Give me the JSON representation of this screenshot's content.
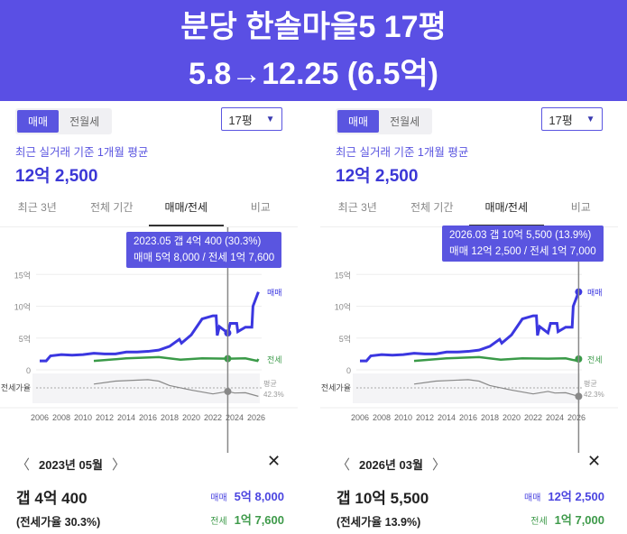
{
  "banner": {
    "line1": "분당 한솔마을5 17평",
    "line2": "5.8→12.25 (6.5억)"
  },
  "panels": [
    {
      "seg": [
        "매매",
        "전월세"
      ],
      "size": "17평",
      "subtitle": "최근 실거래 기준 1개월 평균",
      "price": "12억 2,500",
      "tabs": [
        "최근 3년",
        "전체 기간",
        "매매/전세",
        "비교"
      ],
      "tooltip": {
        "line1": "2023.05  갭 4억 400 (30.3%)",
        "line2": "매매 5억 8,000 / 전세 1억 7,600"
      },
      "cursor_year": 2023.37,
      "footer": {
        "month": "2023년 05월",
        "gap": "갭 4억 400",
        "ratio": "(전세가율 30.3%)",
        "sale_label": "매매",
        "sale": "5억 8,000",
        "jeonse_label": "전세",
        "jeonse": "1억 7,600"
      }
    },
    {
      "seg": [
        "매매",
        "전월세"
      ],
      "size": "17평",
      "subtitle": "최근 실거래 기준 1개월 평균",
      "price": "12억 2,500",
      "tabs": [
        "최근 3년",
        "전체 기간",
        "매매/전세",
        "비교"
      ],
      "tooltip": {
        "line1": "2026.03  갭 10억 5,500 (13.9%)",
        "line2": "매매 12억 2,500 / 전세 1억 7,000"
      },
      "cursor_year": 2026.2,
      "footer": {
        "month": "2026년 03월",
        "gap": "갭 10억 5,500",
        "ratio": "(전세가율 13.9%)",
        "sale_label": "매매",
        "sale": "12억 2,500",
        "jeonse_label": "전세",
        "jeonse": "1억 7,000"
      }
    }
  ],
  "chart_data": {
    "type": "line",
    "ylabel": "억",
    "yticks": [
      "0",
      "5억",
      "10억",
      "15억"
    ],
    "ylim": [
      0,
      15
    ],
    "xticks": [
      "2006",
      "2008",
      "2010",
      "2012",
      "2014",
      "2016",
      "2018",
      "2020",
      "2022",
      "2024",
      "2026"
    ],
    "ratio_label": "전세가율",
    "avg_label": "평균",
    "avg_value": "42.3%",
    "series": [
      {
        "name": "매매",
        "color": "#3b37e0",
        "points": [
          [
            2006,
            1.4
          ],
          [
            2006.6,
            1.4
          ],
          [
            2007,
            2.2
          ],
          [
            2008,
            2.4
          ],
          [
            2009,
            2.3
          ],
          [
            2010,
            2.4
          ],
          [
            2011,
            2.6
          ],
          [
            2012,
            2.5
          ],
          [
            2013,
            2.5
          ],
          [
            2014,
            2.8
          ],
          [
            2015,
            2.8
          ],
          [
            2016,
            2.9
          ],
          [
            2017,
            3.1
          ],
          [
            2018,
            3.7
          ],
          [
            2018.9,
            4.8
          ],
          [
            2019.1,
            4.2
          ],
          [
            2020,
            5.5
          ],
          [
            2021,
            8.0
          ],
          [
            2022,
            8.5
          ],
          [
            2022.3,
            8.5
          ],
          [
            2022.4,
            5.4
          ],
          [
            2022.6,
            6.8
          ],
          [
            2023.37,
            5.8
          ],
          [
            2023.6,
            7.3
          ],
          [
            2024.2,
            7.3
          ],
          [
            2024.3,
            6.0
          ],
          [
            2025,
            6.7
          ],
          [
            2025.6,
            6.7
          ],
          [
            2025.7,
            10
          ],
          [
            2026.2,
            12.25
          ]
        ]
      },
      {
        "name": "전세",
        "color": "#3a9a48",
        "points": [
          [
            2011,
            1.4
          ],
          [
            2014,
            1.8
          ],
          [
            2017,
            2.0
          ],
          [
            2019,
            1.6
          ],
          [
            2021,
            1.8
          ],
          [
            2023.37,
            1.76
          ],
          [
            2025,
            1.8
          ],
          [
            2026.1,
            1.4
          ],
          [
            2026.2,
            1.7
          ]
        ]
      },
      {
        "name": "전세가율",
        "color": "#888888",
        "points": [
          [
            2011,
            55
          ],
          [
            2013,
            65
          ],
          [
            2016,
            70
          ],
          [
            2017,
            65
          ],
          [
            2018,
            50
          ],
          [
            2020,
            35
          ],
          [
            2022,
            22
          ],
          [
            2023.37,
            30.3
          ],
          [
            2024,
            25
          ],
          [
            2025,
            26
          ],
          [
            2026.2,
            13.9
          ]
        ]
      }
    ]
  }
}
